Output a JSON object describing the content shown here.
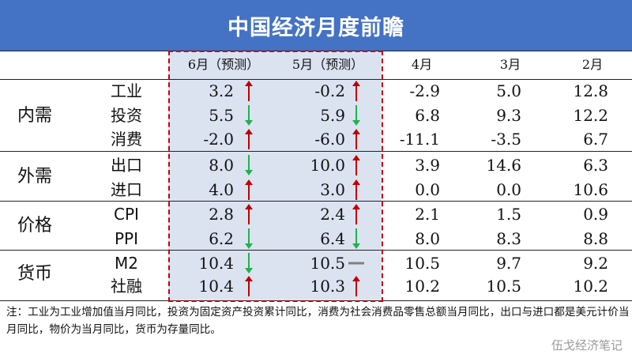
{
  "title": "中国经济月度前瞻",
  "colors": {
    "up": "#c00000",
    "down": "#22b14c",
    "flat": "#808080",
    "header_bg": "#4472c4",
    "highlight_bg": "#dbe3f1"
  },
  "columns": [
    "6月（预测）",
    "5月（预测）",
    "4月",
    "3月",
    "2月"
  ],
  "groups": [
    {
      "name": "内需",
      "rows": [
        {
          "label": "工业",
          "values": [
            "3.2",
            "-0.2",
            "-2.9",
            "5.0",
            "12.8"
          ],
          "trend6": "up",
          "trend5": "up"
        },
        {
          "label": "投资",
          "values": [
            "5.5",
            "5.9",
            "6.8",
            "9.3",
            "12.2"
          ],
          "trend6": "down",
          "trend5": "down"
        },
        {
          "label": "消费",
          "values": [
            "-2.0",
            "-6.0",
            "-11.1",
            "-3.5",
            "6.7"
          ],
          "trend6": "up",
          "trend5": "up"
        }
      ]
    },
    {
      "name": "外需",
      "rows": [
        {
          "label": "出口",
          "values": [
            "8.0",
            "10.0",
            "3.9",
            "14.6",
            "6.3"
          ],
          "trend6": "down",
          "trend5": "up"
        },
        {
          "label": "进口",
          "values": [
            "4.0",
            "3.0",
            "0.0",
            "0.0",
            "10.6"
          ],
          "trend6": "up",
          "trend5": "up"
        }
      ]
    },
    {
      "name": "价格",
      "rows": [
        {
          "label": "CPI",
          "values": [
            "2.8",
            "2.4",
            "2.1",
            "1.5",
            "0.9"
          ],
          "trend6": "up",
          "trend5": "up"
        },
        {
          "label": "PPI",
          "values": [
            "6.2",
            "6.4",
            "8.0",
            "8.3",
            "8.8"
          ],
          "trend6": "down",
          "trend5": "down"
        }
      ]
    },
    {
      "name": "货币",
      "rows": [
        {
          "label": "M2",
          "values": [
            "10.4",
            "10.5",
            "10.5",
            "9.7",
            "9.2"
          ],
          "trend6": "down",
          "trend5": "flat"
        },
        {
          "label": "社融",
          "values": [
            "10.4",
            "10.3",
            "10.2",
            "10.5",
            "10.2"
          ],
          "trend6": "up",
          "trend5": "up"
        }
      ]
    }
  ],
  "note": "注：工业为工业增加值当月同比，投资为固定资产投资累计同比，消费为社会消费品零售总额当月同比，出口与进口都是美元计价当月同比，物价为当月同比，货币为存量同比。",
  "watermark": "伍戈经济笔记"
}
